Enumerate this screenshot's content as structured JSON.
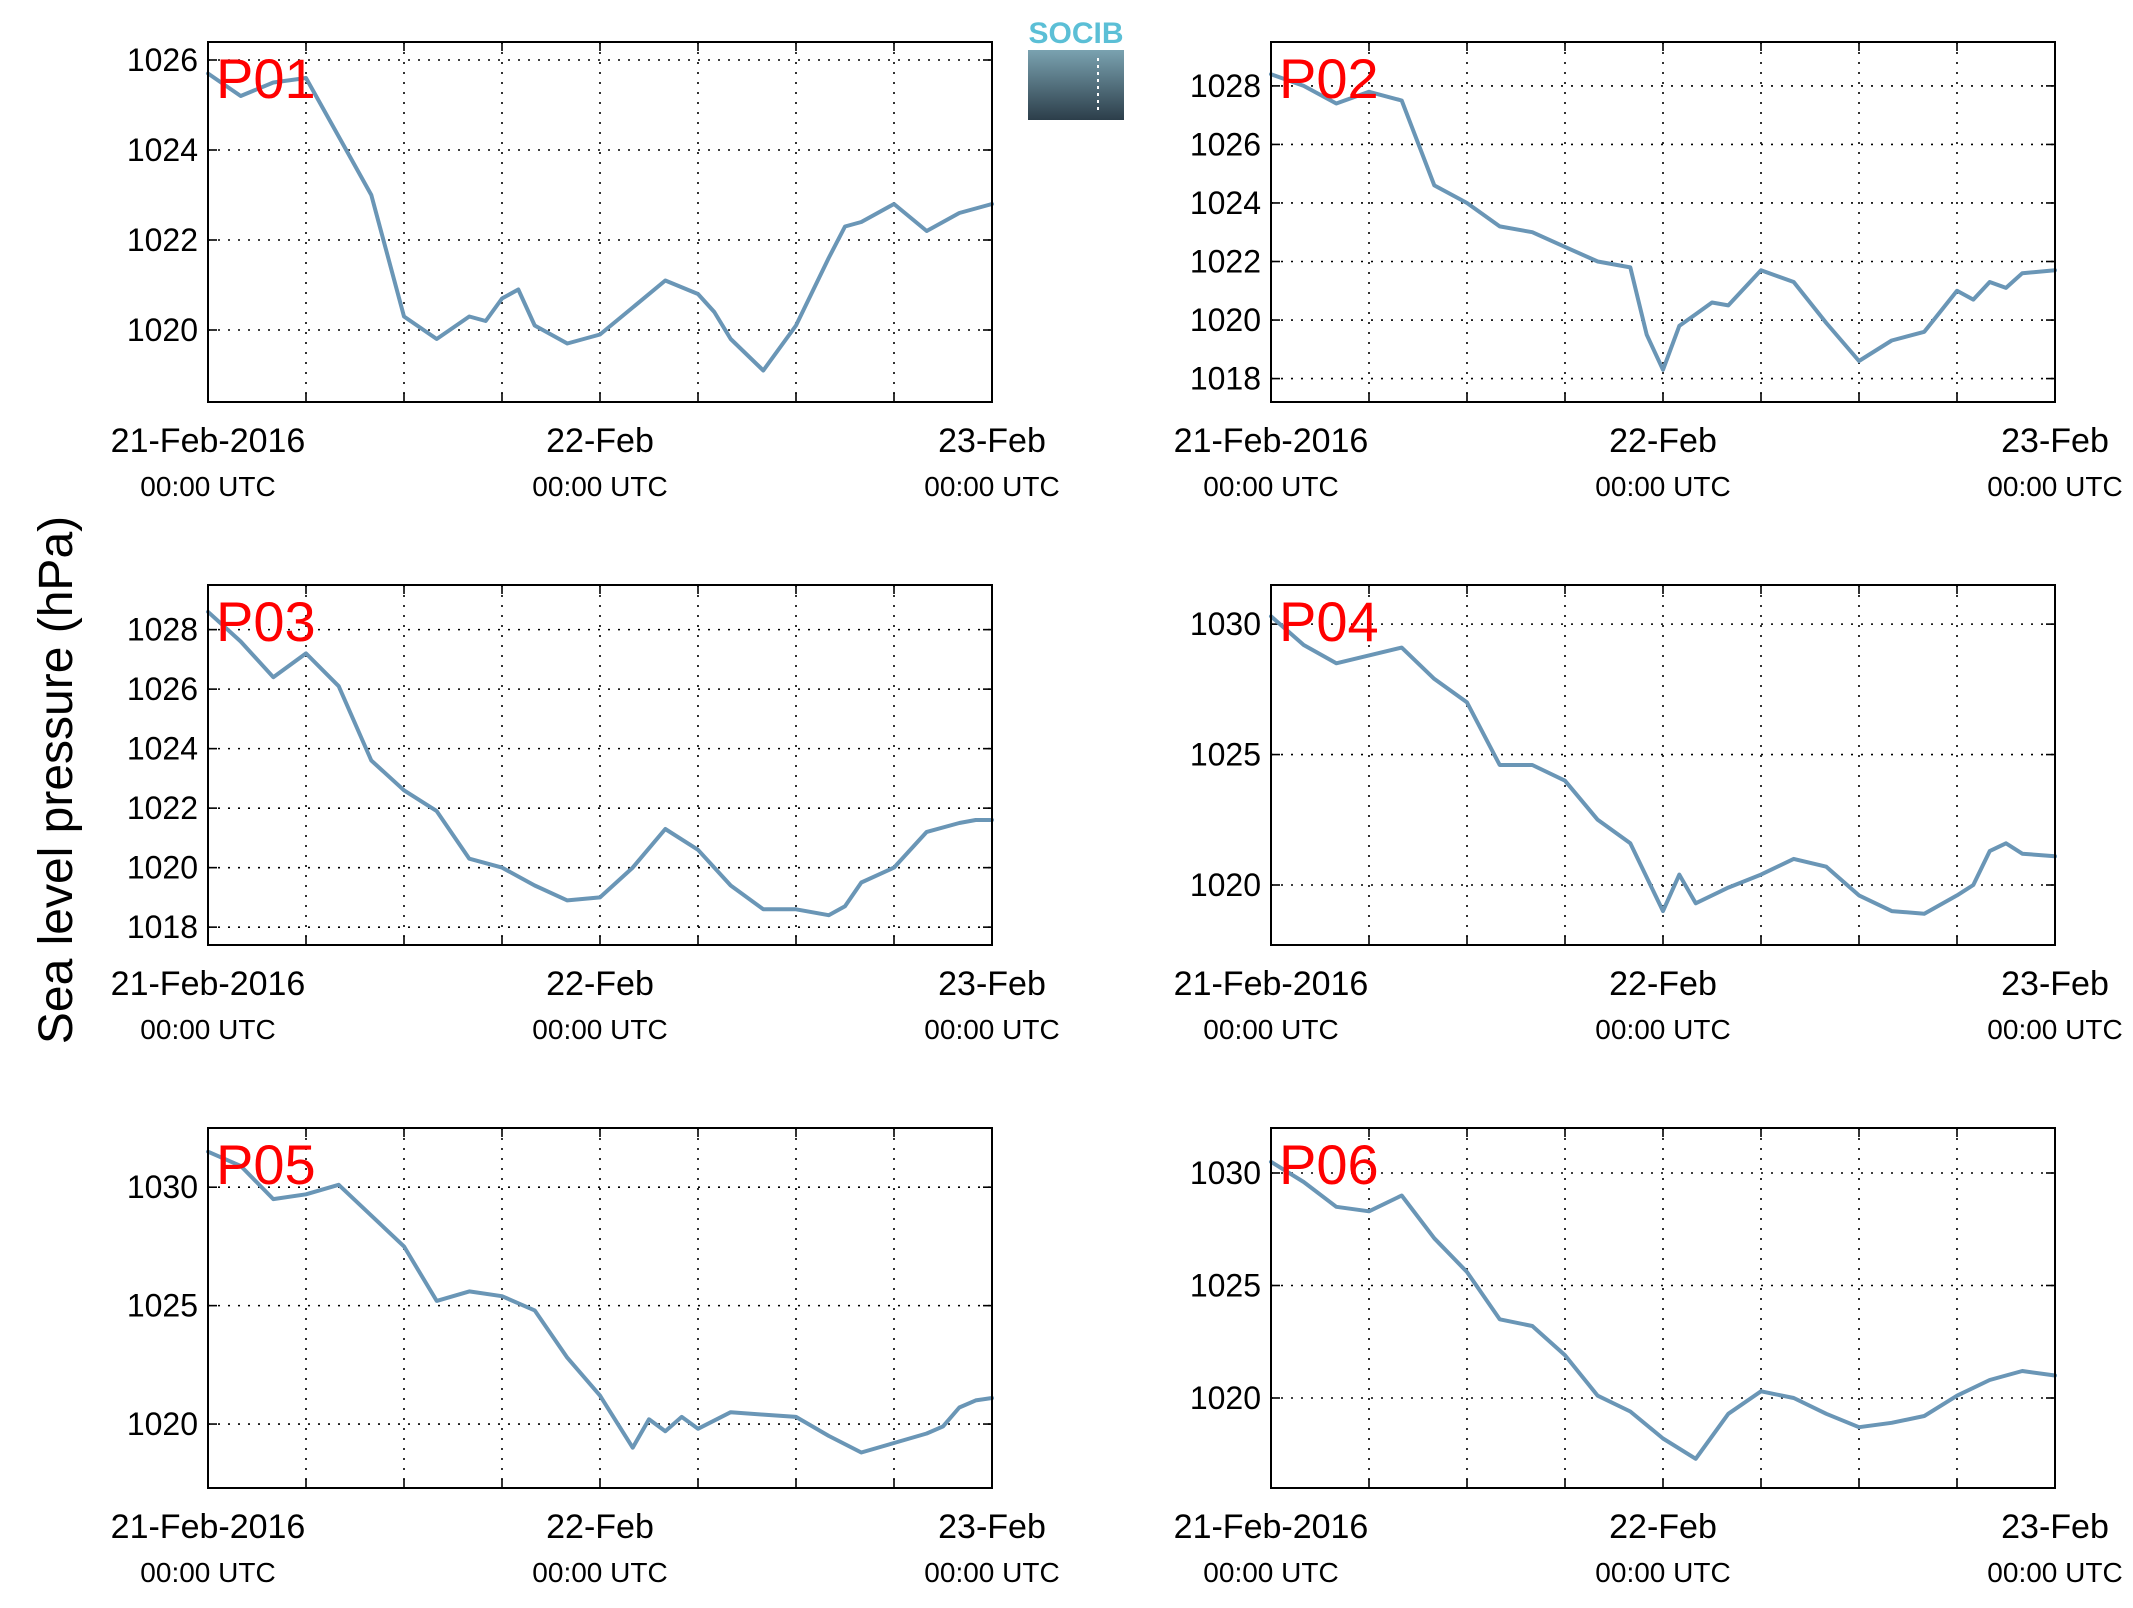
{
  "figure": {
    "ylabel": "Sea level pressure (hPa)",
    "logo_text": "SOCIB",
    "line_color": "#6a96b6",
    "label_color": "#ff0000"
  },
  "chart_data": [
    {
      "type": "line",
      "label": "P01",
      "xlim": [
        0,
        48
      ],
      "ylim": [
        1018.4,
        1026.4
      ],
      "yticks": [
        1020,
        1022,
        1024,
        1026
      ],
      "xticks": [
        {
          "value": 0,
          "main": "21-Feb-2016",
          "sub": "00:00 UTC"
        },
        {
          "value": 24,
          "main": "22-Feb",
          "sub": "00:00 UTC"
        },
        {
          "value": 48,
          "main": "23-Feb",
          "sub": "00:00 UTC"
        }
      ],
      "grid": true,
      "x": [
        0,
        2,
        4,
        6,
        8,
        10,
        12,
        14,
        16,
        17,
        18,
        19,
        20,
        22,
        24,
        26,
        28,
        30,
        31,
        32,
        34,
        36,
        38,
        39,
        40,
        42,
        44,
        45,
        46,
        48
      ],
      "y": [
        1025.7,
        1025.2,
        1025.5,
        1025.6,
        1024.3,
        1023.0,
        1020.3,
        1019.8,
        1020.3,
        1020.2,
        1020.7,
        1020.9,
        1020.1,
        1019.7,
        1019.9,
        1020.5,
        1021.1,
        1020.8,
        1020.4,
        1019.8,
        1019.1,
        1020.1,
        1021.6,
        1022.3,
        1022.4,
        1022.8,
        1022.2,
        1022.4,
        1022.6,
        1022.8
      ]
    },
    {
      "type": "line",
      "label": "P02",
      "xlim": [
        0,
        48
      ],
      "ylim": [
        1017.2,
        1029.5
      ],
      "yticks": [
        1018,
        1020,
        1022,
        1024,
        1026,
        1028
      ],
      "xticks": [
        {
          "value": 0,
          "main": "21-Feb-2016",
          "sub": "00:00 UTC"
        },
        {
          "value": 24,
          "main": "22-Feb",
          "sub": "00:00 UTC"
        },
        {
          "value": 48,
          "main": "23-Feb",
          "sub": "00:00 UTC"
        }
      ],
      "grid": true,
      "x": [
        0,
        2,
        4,
        6,
        8,
        10,
        12,
        14,
        16,
        18,
        20,
        22,
        23,
        24,
        25,
        26,
        27,
        28,
        30,
        32,
        34,
        36,
        38,
        40,
        42,
        43,
        44,
        45,
        46,
        48
      ],
      "y": [
        1028.4,
        1028.0,
        1027.4,
        1027.8,
        1027.5,
        1024.6,
        1024.0,
        1023.2,
        1023.0,
        1022.5,
        1022.0,
        1021.8,
        1019.5,
        1018.3,
        1019.8,
        1020.2,
        1020.6,
        1020.5,
        1021.7,
        1021.3,
        1019.9,
        1018.6,
        1019.3,
        1019.6,
        1021.0,
        1020.7,
        1021.3,
        1021.1,
        1021.6,
        1021.7
      ]
    },
    {
      "type": "line",
      "label": "P03",
      "xlim": [
        0,
        48
      ],
      "ylim": [
        1017.4,
        1029.5
      ],
      "yticks": [
        1018,
        1020,
        1022,
        1024,
        1026,
        1028
      ],
      "xticks": [
        {
          "value": 0,
          "main": "21-Feb-2016",
          "sub": "00:00 UTC"
        },
        {
          "value": 24,
          "main": "22-Feb",
          "sub": "00:00 UTC"
        },
        {
          "value": 48,
          "main": "23-Feb",
          "sub": "00:00 UTC"
        }
      ],
      "grid": true,
      "x": [
        0,
        2,
        4,
        6,
        8,
        10,
        12,
        14,
        16,
        18,
        20,
        22,
        24,
        26,
        28,
        30,
        32,
        34,
        36,
        38,
        39,
        40,
        42,
        44,
        46,
        47,
        48
      ],
      "y": [
        1028.6,
        1027.6,
        1026.4,
        1027.2,
        1026.1,
        1023.6,
        1022.6,
        1021.9,
        1020.3,
        1020.0,
        1019.4,
        1018.9,
        1019.0,
        1020.0,
        1021.3,
        1020.6,
        1019.4,
        1018.6,
        1018.6,
        1018.4,
        1018.7,
        1019.5,
        1020.0,
        1021.2,
        1021.5,
        1021.6,
        1021.6
      ]
    },
    {
      "type": "line",
      "label": "P04",
      "xlim": [
        0,
        48
      ],
      "ylim": [
        1017.7,
        1031.5
      ],
      "yticks": [
        1020,
        1025,
        1030
      ],
      "xticks": [
        {
          "value": 0,
          "main": "21-Feb-2016",
          "sub": "00:00 UTC"
        },
        {
          "value": 24,
          "main": "22-Feb",
          "sub": "00:00 UTC"
        },
        {
          "value": 48,
          "main": "23-Feb",
          "sub": "00:00 UTC"
        }
      ],
      "grid": true,
      "x": [
        0,
        2,
        4,
        6,
        8,
        10,
        12,
        14,
        16,
        18,
        20,
        22,
        24,
        25,
        26,
        28,
        30,
        32,
        34,
        36,
        38,
        40,
        42,
        43,
        44,
        45,
        46,
        48
      ],
      "y": [
        1030.3,
        1029.2,
        1028.5,
        1028.8,
        1029.1,
        1027.9,
        1027.0,
        1024.6,
        1024.6,
        1024.0,
        1022.5,
        1021.6,
        1019.0,
        1020.4,
        1019.3,
        1019.9,
        1020.4,
        1021.0,
        1020.7,
        1019.6,
        1019.0,
        1018.9,
        1019.6,
        1020.0,
        1021.3,
        1021.6,
        1021.2,
        1021.1
      ]
    },
    {
      "type": "line",
      "label": "P05",
      "xlim": [
        0,
        48
      ],
      "ylim": [
        1017.3,
        1032.5
      ],
      "yticks": [
        1020,
        1025,
        1030
      ],
      "xticks": [
        {
          "value": 0,
          "main": "21-Feb-2016",
          "sub": "00:00 UTC"
        },
        {
          "value": 24,
          "main": "22-Feb",
          "sub": "00:00 UTC"
        },
        {
          "value": 48,
          "main": "23-Feb",
          "sub": "00:00 UTC"
        }
      ],
      "grid": true,
      "x": [
        0,
        2,
        4,
        6,
        8,
        10,
        12,
        14,
        16,
        18,
        20,
        22,
        24,
        26,
        27,
        28,
        29,
        30,
        32,
        34,
        36,
        38,
        40,
        42,
        44,
        45,
        46,
        47,
        48
      ],
      "y": [
        1031.5,
        1030.9,
        1029.5,
        1029.7,
        1030.1,
        1028.8,
        1027.5,
        1025.2,
        1025.6,
        1025.4,
        1024.8,
        1022.8,
        1021.2,
        1019.0,
        1020.2,
        1019.7,
        1020.3,
        1019.8,
        1020.5,
        1020.4,
        1020.3,
        1019.5,
        1018.8,
        1019.2,
        1019.6,
        1019.9,
        1020.7,
        1021.0,
        1021.1
      ]
    },
    {
      "type": "line",
      "label": "P06",
      "xlim": [
        0,
        48
      ],
      "ylim": [
        1016.0,
        1032.0
      ],
      "yticks": [
        1020,
        1025,
        1030
      ],
      "xticks": [
        {
          "value": 0,
          "main": "21-Feb-2016",
          "sub": "00:00 UTC"
        },
        {
          "value": 24,
          "main": "22-Feb",
          "sub": "00:00 UTC"
        },
        {
          "value": 48,
          "main": "23-Feb",
          "sub": "00:00 UTC"
        }
      ],
      "grid": true,
      "x": [
        0,
        2,
        4,
        6,
        8,
        10,
        12,
        14,
        16,
        18,
        20,
        22,
        24,
        26,
        28,
        30,
        32,
        34,
        36,
        38,
        40,
        42,
        44,
        46,
        48
      ],
      "y": [
        1030.5,
        1029.6,
        1028.5,
        1028.3,
        1029.0,
        1027.1,
        1025.6,
        1023.5,
        1023.2,
        1021.9,
        1020.1,
        1019.4,
        1018.2,
        1017.3,
        1019.3,
        1020.3,
        1020.0,
        1019.3,
        1018.7,
        1018.9,
        1019.2,
        1020.1,
        1020.8,
        1021.2,
        1021.0
      ]
    }
  ]
}
